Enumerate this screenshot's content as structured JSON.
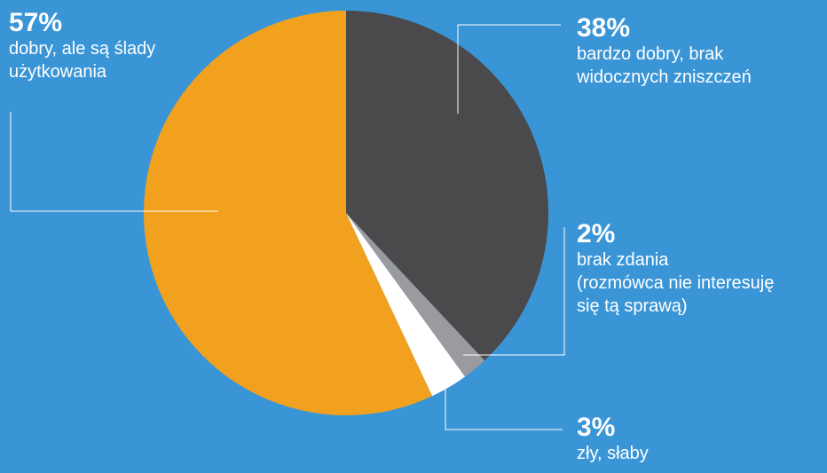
{
  "chart_data": {
    "type": "pie",
    "start_angle_deg": 0,
    "direction": "clockwise",
    "slices": [
      {
        "label": "bardzo dobry, brak\nwidocznych zniszczeń",
        "percent_text": "38%",
        "value": 38,
        "color": "#4a494b"
      },
      {
        "label": "brak zdania\n(rozmówca nie interesuję\nsię tą sprawą)",
        "percent_text": "2%",
        "value": 2,
        "color": "#9a9b9e"
      },
      {
        "label": "zły, słaby",
        "percent_text": "3%",
        "value": 3,
        "color": "#ffffff"
      },
      {
        "label": "dobry, ale są ślady\nużytkowania",
        "percent_text": "57%",
        "value": 57,
        "color": "#f2a11f"
      }
    ],
    "background_color": "#3a95d6",
    "leader_line_color": "#ffffff"
  }
}
